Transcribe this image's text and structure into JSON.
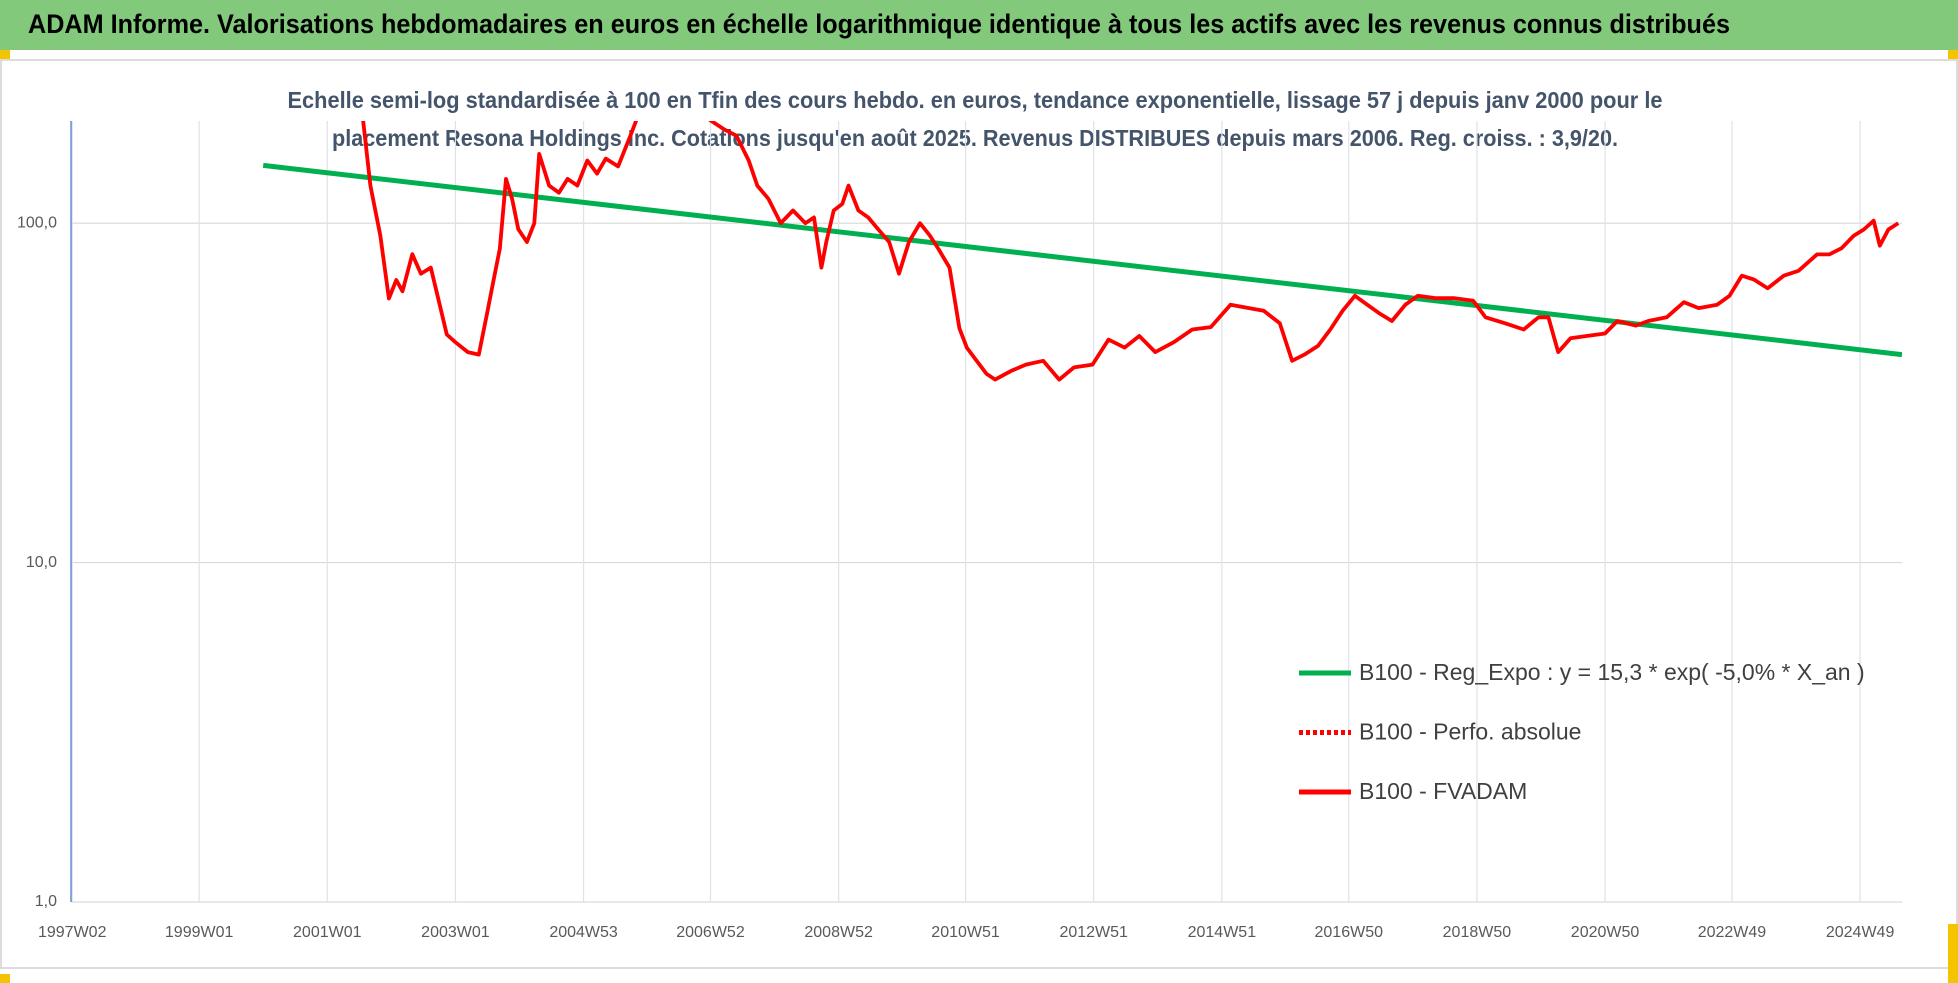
{
  "chart_data": {
    "type": "line",
    "title": "ADAM Informe. Valorisations hebdomadaires en euros en échelle logarithmique identique à tous les actifs avec les revenus connus distribués",
    "subtitle": [
      "Echelle semi-log standardisée à 100 en Tfin des cours hebdo. en euros, tendance exponentielle, lissage 57 j depuis janv 2000 pour le",
      "placement Resona Holdings Inc. Cotations jusqu'en août 2025. Revenus DISTRIBUES depuis mars 2006. Reg. croiss. : 3,9/20."
    ],
    "log_scale": true,
    "grid": true,
    "legend": "right",
    "ylim": [
      1,
      200
    ],
    "yticks": [
      {
        "value": 1,
        "label": "1,0"
      },
      {
        "value": 10,
        "label": "10,0"
      },
      {
        "value": 100,
        "label": "100,0"
      }
    ],
    "xlim": [
      "1997W01",
      "2025W31"
    ],
    "xticks": [
      "1997W02",
      "1999W01",
      "2001W01",
      "2003W01",
      "2004W53",
      "2006W52",
      "2008W52",
      "2010W51",
      "2012W51",
      "2014W51",
      "2016W50",
      "2018W50",
      "2020W50",
      "2022W49",
      "2024W49"
    ],
    "series": [
      {
        "name": "B100 - Reg_Expo : y = 15,3 * exp( -5,0% *  X_an )",
        "color": "#00b050",
        "dashed": false,
        "x": [
          "2000W01",
          "2025W31"
        ],
        "values": [
          148,
          41
        ]
      },
      {
        "name": "B100 - Perfo. absolue",
        "color": "#ff0000",
        "dashed": true,
        "x": [],
        "values": []
      },
      {
        "name": "B100 - FVADAM",
        "color": "#ff0000",
        "dashed": false,
        "x": [
          "2001W30",
          "2001W36",
          "2001W44",
          "2001W51",
          "2002W05",
          "2002W10",
          "2002W18",
          "2002W25",
          "2002W33",
          "2002W40",
          "2002W46",
          "2003W01",
          "2003W11",
          "2003W20",
          "2003W27",
          "2003W32",
          "2003W37",
          "2003W42",
          "2003W47",
          "2003W52",
          "2004W07",
          "2004W13",
          "2004W17",
          "2004W25",
          "2004W33",
          "2004W40",
          "2004W48",
          "2005W04",
          "2005W12",
          "2005W19",
          "2005W29",
          "2005W39",
          "2005W44",
          "2006W20",
          "2006W51",
          "2007W11",
          "2007W21",
          "2007W31",
          "2007W38",
          "2007W47",
          "2008W05",
          "2008W15",
          "2008W25",
          "2008W32",
          "2008W38",
          "2008W42",
          "2008W48",
          "2009W03",
          "2009W08",
          "2009W16",
          "2009W24",
          "2009W32",
          "2009W41",
          "2009W49",
          "2010W05",
          "2010W14",
          "2010W22",
          "2010W29",
          "2010W38",
          "2010W46",
          "2010W52",
          "2011W08",
          "2011W16",
          "2011W23",
          "2011W36",
          "2011W48",
          "2012W10",
          "2012W23",
          "2012W35",
          "2012W50",
          "2013W11",
          "2013W24",
          "2013W36",
          "2013W49",
          "2014W12",
          "2014W27",
          "2014W42",
          "2015W06",
          "2015W21",
          "2015W33",
          "2015W46",
          "2016W04",
          "2016W14",
          "2016W25",
          "2016W35",
          "2016W45",
          "2017W03",
          "2017W13",
          "2017W23",
          "2017W33",
          "2017W44",
          "2018W02",
          "2018W17",
          "2018W32",
          "2018W47",
          "2019W05",
          "2019W21",
          "2019W36",
          "2019W48",
          "2020W04",
          "2020W12",
          "2020W22",
          "2020W35",
          "2020W50",
          "2021W08",
          "2021W23",
          "2021W33",
          "2021W48",
          "2022W10",
          "2022W22",
          "2022W37",
          "2022W47",
          "2023W05",
          "2023W15",
          "2023W26",
          "2023W39",
          "2023W51",
          "2024W14",
          "2024W24",
          "2024W34",
          "2024W44",
          "2024W52",
          "2025W08",
          "2025W13",
          "2025W20",
          "2025W28"
        ],
        "values": [
          202,
          129,
          92,
          60,
          68,
          63,
          81,
          71,
          74,
          58,
          47,
          44.6,
          41.7,
          41,
          55,
          68,
          84,
          135,
          118,
          96,
          88,
          100,
          160,
          129,
          123,
          135,
          129,
          153,
          140,
          155,
          147,
          181,
          202,
          null,
          202,
          189,
          181,
          153,
          129,
          118,
          100,
          109,
          100,
          104,
          74,
          88,
          109,
          114,
          129,
          109,
          104,
          96,
          88,
          71,
          88,
          100,
          92,
          84,
          74,
          49,
          43,
          39.3,
          36,
          34.6,
          36.7,
          38.3,
          39.3,
          34.6,
          37.6,
          38.3,
          45.4,
          43,
          46.5,
          41.7,
          44.6,
          48.6,
          49.4,
          57.5,
          56.2,
          55.2,
          50.7,
          39.3,
          41,
          43.5,
          48.6,
          55.2,
          61.1,
          57.5,
          54.2,
          51.5,
          57.5,
          61.1,
          60.1,
          60.1,
          59.1,
          52.8,
          50.7,
          48.6,
          52.8,
          52.8,
          41.7,
          45.8,
          46.5,
          47.3,
          51.5,
          49.9,
          51.5,
          52.8,
          58.5,
          56.2,
          57.5,
          61.1,
          70,
          68.2,
          64.3,
          70,
          72.4,
          80.9,
          80.9,
          84.4,
          91.9,
          95.8,
          101.7,
          85.8,
          95.8,
          100
        ]
      }
    ]
  }
}
